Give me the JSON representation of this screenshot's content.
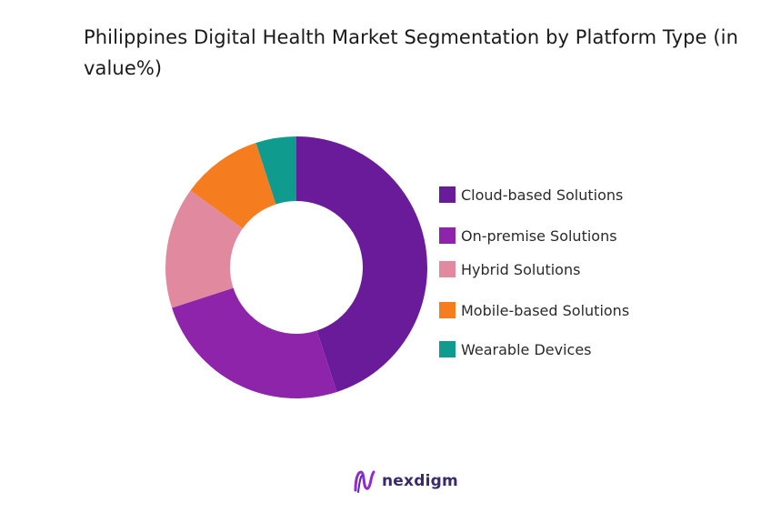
{
  "chart_data": {
    "type": "pie",
    "title": "Philippines Digital Health Market Segmentation by Platform Type (in value%)",
    "legend_position": "right",
    "donut": true,
    "categories": [
      "Cloud-based Solutions",
      "On-premise Solutions",
      "Hybrid Solutions",
      "Mobile-based Solutions",
      "Wearable Devices"
    ],
    "values": [
      45,
      25,
      15,
      10,
      5
    ],
    "colors": [
      "#6a1b9a",
      "#8e24aa",
      "#e0899f",
      "#f57c1f",
      "#0f9b8e"
    ]
  },
  "brand": {
    "name": "nexdigm",
    "icon": "nexdigm-logo-icon"
  }
}
